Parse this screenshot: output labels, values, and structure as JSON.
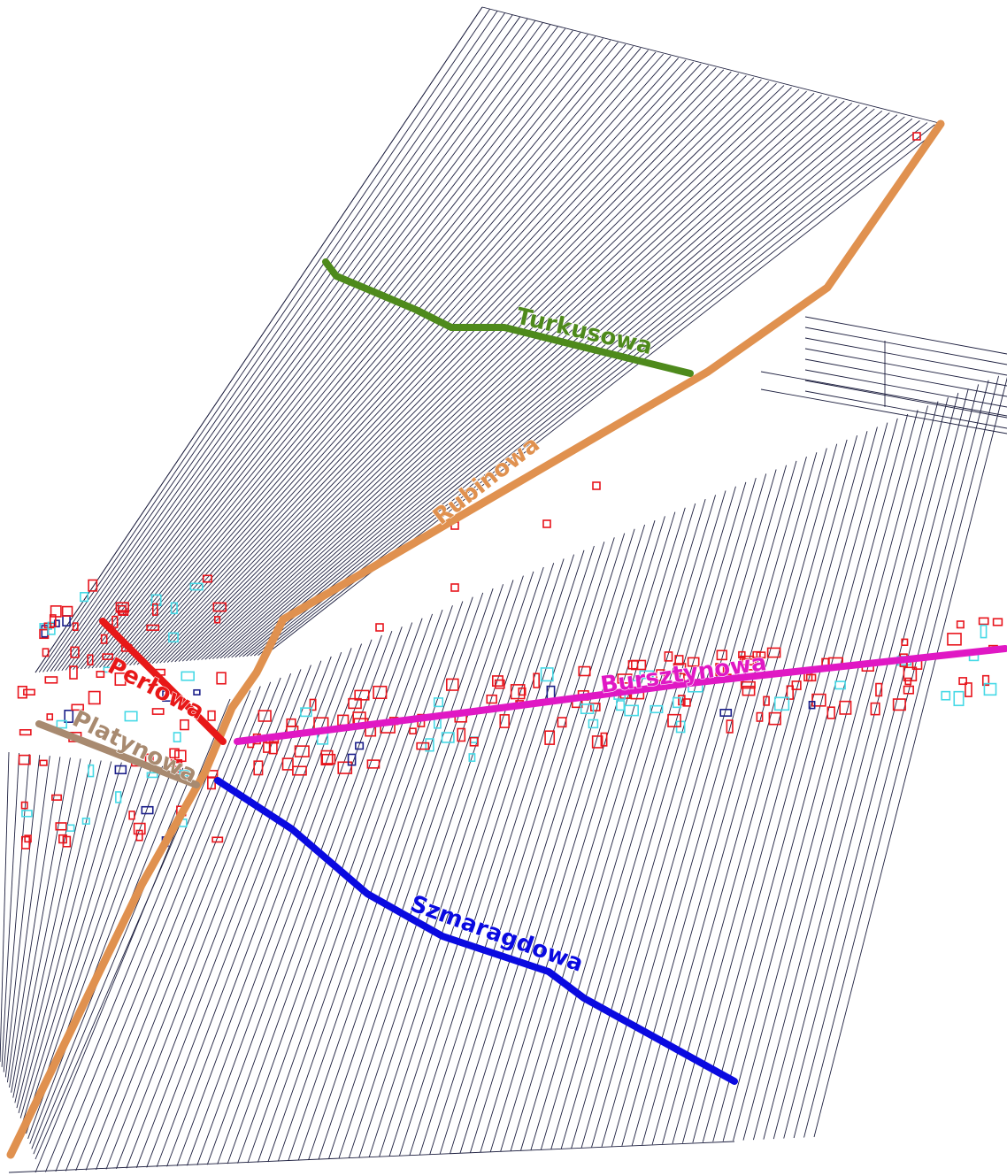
{
  "map": {
    "colors": {
      "background": "#ffffff",
      "parcel_line": "#1e2040",
      "building": "#e8141c",
      "building_alt": "#46d9e6",
      "building_dark": "#1b1f8a"
    },
    "streets": [
      {
        "id": "rubinowa",
        "label": "Rubinowa",
        "color": "#e0914f"
      },
      {
        "id": "turkusowa",
        "label": "Turkusowa",
        "color": "#4e8a1c"
      },
      {
        "id": "bursztynowa",
        "label": "Bursztynowa",
        "color": "#e018c4"
      },
      {
        "id": "szmaragdowa",
        "label": "Szmaragdowa",
        "color": "#0a0ae0"
      },
      {
        "id": "perlowa",
        "label": "Perłowa",
        "color": "#e81818"
      },
      {
        "id": "platynowa",
        "label": "Platynowa",
        "color": "#a88a70"
      }
    ]
  }
}
